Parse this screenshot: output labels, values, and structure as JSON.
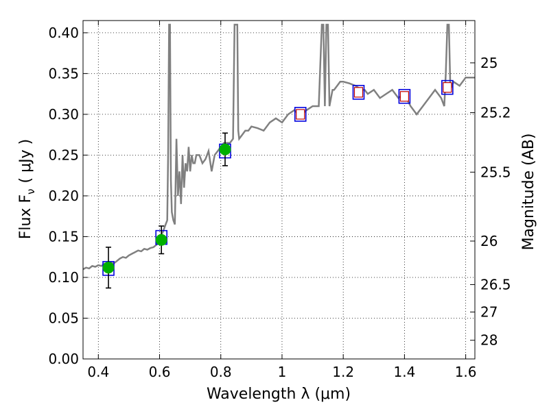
{
  "chart_data": {
    "type": "line",
    "title": "",
    "xlabel": "Wavelength  λ (μm)",
    "ylabel": "Flux  F",
    "ylabel_sub": "ν",
    "ylabel_unit": "( μJy )",
    "y2label": "Magnitude (AB)",
    "xlim": [
      0.35,
      1.63
    ],
    "ylim": [
      0.0,
      0.415
    ],
    "grid": true,
    "x_ticks": [
      0.4,
      0.6,
      0.8,
      1.0,
      1.2,
      1.4,
      1.6
    ],
    "x_tick_labels": [
      "0.4",
      "0.6",
      "0.8",
      "1",
      "1.2",
      "1.4",
      "1.6"
    ],
    "y_ticks": [
      0.0,
      0.05,
      0.1,
      0.15,
      0.2,
      0.25,
      0.3,
      0.35,
      0.4
    ],
    "y_tick_labels": [
      "0.00",
      "0.05",
      "0.10",
      "0.15",
      "0.20",
      "0.25",
      "0.30",
      "0.35",
      "0.40"
    ],
    "y2_ticks": [
      {
        "mag": 25.0,
        "label": "25"
      },
      {
        "mag": 25.2,
        "label": "25.2"
      },
      {
        "mag": 25.5,
        "label": "25.5"
      },
      {
        "mag": 26.0,
        "label": "26"
      },
      {
        "mag": 26.5,
        "label": "26.5"
      },
      {
        "mag": 27.0,
        "label": "27"
      },
      {
        "mag": 28.0,
        "label": "28"
      }
    ],
    "model_spectrum": {
      "color": "#808080",
      "x": [
        0.35,
        0.36,
        0.37,
        0.38,
        0.39,
        0.4,
        0.41,
        0.42,
        0.43,
        0.44,
        0.45,
        0.46,
        0.47,
        0.48,
        0.49,
        0.5,
        0.51,
        0.52,
        0.53,
        0.54,
        0.55,
        0.56,
        0.57,
        0.58,
        0.59,
        0.6,
        0.61,
        0.62,
        0.625,
        0.628,
        0.631,
        0.634,
        0.637,
        0.64,
        0.645,
        0.65,
        0.655,
        0.66,
        0.665,
        0.67,
        0.675,
        0.68,
        0.685,
        0.69,
        0.695,
        0.7,
        0.705,
        0.71,
        0.715,
        0.72,
        0.73,
        0.74,
        0.75,
        0.76,
        0.77,
        0.78,
        0.79,
        0.8,
        0.81,
        0.82,
        0.83,
        0.84,
        0.845,
        0.848,
        0.851,
        0.854,
        0.857,
        0.86,
        0.87,
        0.88,
        0.89,
        0.9,
        0.92,
        0.94,
        0.96,
        0.98,
        1.0,
        1.02,
        1.04,
        1.06,
        1.08,
        1.1,
        1.12,
        1.125,
        1.13,
        1.135,
        1.14,
        1.145,
        1.15,
        1.155,
        1.16,
        1.165,
        1.17,
        1.18,
        1.19,
        1.2,
        1.22,
        1.24,
        1.26,
        1.27,
        1.28,
        1.3,
        1.32,
        1.34,
        1.36,
        1.38,
        1.4,
        1.42,
        1.44,
        1.46,
        1.48,
        1.5,
        1.52,
        1.53,
        1.535,
        1.54,
        1.545,
        1.55,
        1.56,
        1.58,
        1.6,
        1.62,
        1.63
      ],
      "y": [
        0.11,
        0.112,
        0.111,
        0.114,
        0.113,
        0.115,
        0.114,
        0.117,
        0.116,
        0.118,
        0.117,
        0.12,
        0.123,
        0.125,
        0.124,
        0.127,
        0.129,
        0.131,
        0.133,
        0.132,
        0.135,
        0.134,
        0.136,
        0.137,
        0.14,
        0.15,
        0.155,
        0.165,
        0.17,
        0.25,
        0.41,
        0.41,
        0.22,
        0.18,
        0.17,
        0.165,
        0.27,
        0.2,
        0.23,
        0.19,
        0.25,
        0.21,
        0.24,
        0.23,
        0.26,
        0.23,
        0.25,
        0.24,
        0.24,
        0.25,
        0.25,
        0.24,
        0.245,
        0.255,
        0.23,
        0.25,
        0.255,
        0.26,
        0.265,
        0.265,
        0.265,
        0.27,
        0.41,
        0.41,
        0.41,
        0.41,
        0.28,
        0.27,
        0.275,
        0.28,
        0.28,
        0.285,
        0.283,
        0.28,
        0.29,
        0.295,
        0.29,
        0.3,
        0.305,
        0.298,
        0.305,
        0.31,
        0.31,
        0.36,
        0.41,
        0.41,
        0.31,
        0.41,
        0.41,
        0.31,
        0.32,
        0.33,
        0.33,
        0.335,
        0.34,
        0.34,
        0.338,
        0.335,
        0.33,
        0.33,
        0.325,
        0.33,
        0.32,
        0.325,
        0.33,
        0.32,
        0.325,
        0.31,
        0.3,
        0.31,
        0.32,
        0.33,
        0.32,
        0.31,
        0.35,
        0.41,
        0.41,
        0.33,
        0.34,
        0.335,
        0.345,
        0.345,
        0.345
      ]
    },
    "photometry": [
      {
        "x": 0.433,
        "y": 0.112,
        "err": 0.025,
        "detected": true
      },
      {
        "x": 0.606,
        "y": 0.146,
        "err": 0.017,
        "detected": true
      },
      {
        "x": 0.814,
        "y": 0.257,
        "err": 0.02,
        "detected": true
      },
      {
        "x": 1.06,
        "y": 0.3,
        "detected": false
      },
      {
        "x": 1.25,
        "y": 0.327,
        "detected": false
      },
      {
        "x": 1.4,
        "y": 0.322,
        "detected": false
      },
      {
        "x": 1.54,
        "y": 0.333,
        "detected": false
      }
    ],
    "model_photometry": [
      {
        "x": 0.433,
        "y": 0.111
      },
      {
        "x": 0.606,
        "y": 0.149
      },
      {
        "x": 0.814,
        "y": 0.255
      },
      {
        "x": 1.06,
        "y": 0.3
      },
      {
        "x": 1.25,
        "y": 0.327
      },
      {
        "x": 1.4,
        "y": 0.322
      },
      {
        "x": 1.54,
        "y": 0.333
      }
    ],
    "colors": {
      "detected_point": "#00b000",
      "upper_point": "#ffffff",
      "upper_point_edge": "#c00000",
      "model_box": "#0000dd",
      "spectrum": "#808080"
    }
  }
}
